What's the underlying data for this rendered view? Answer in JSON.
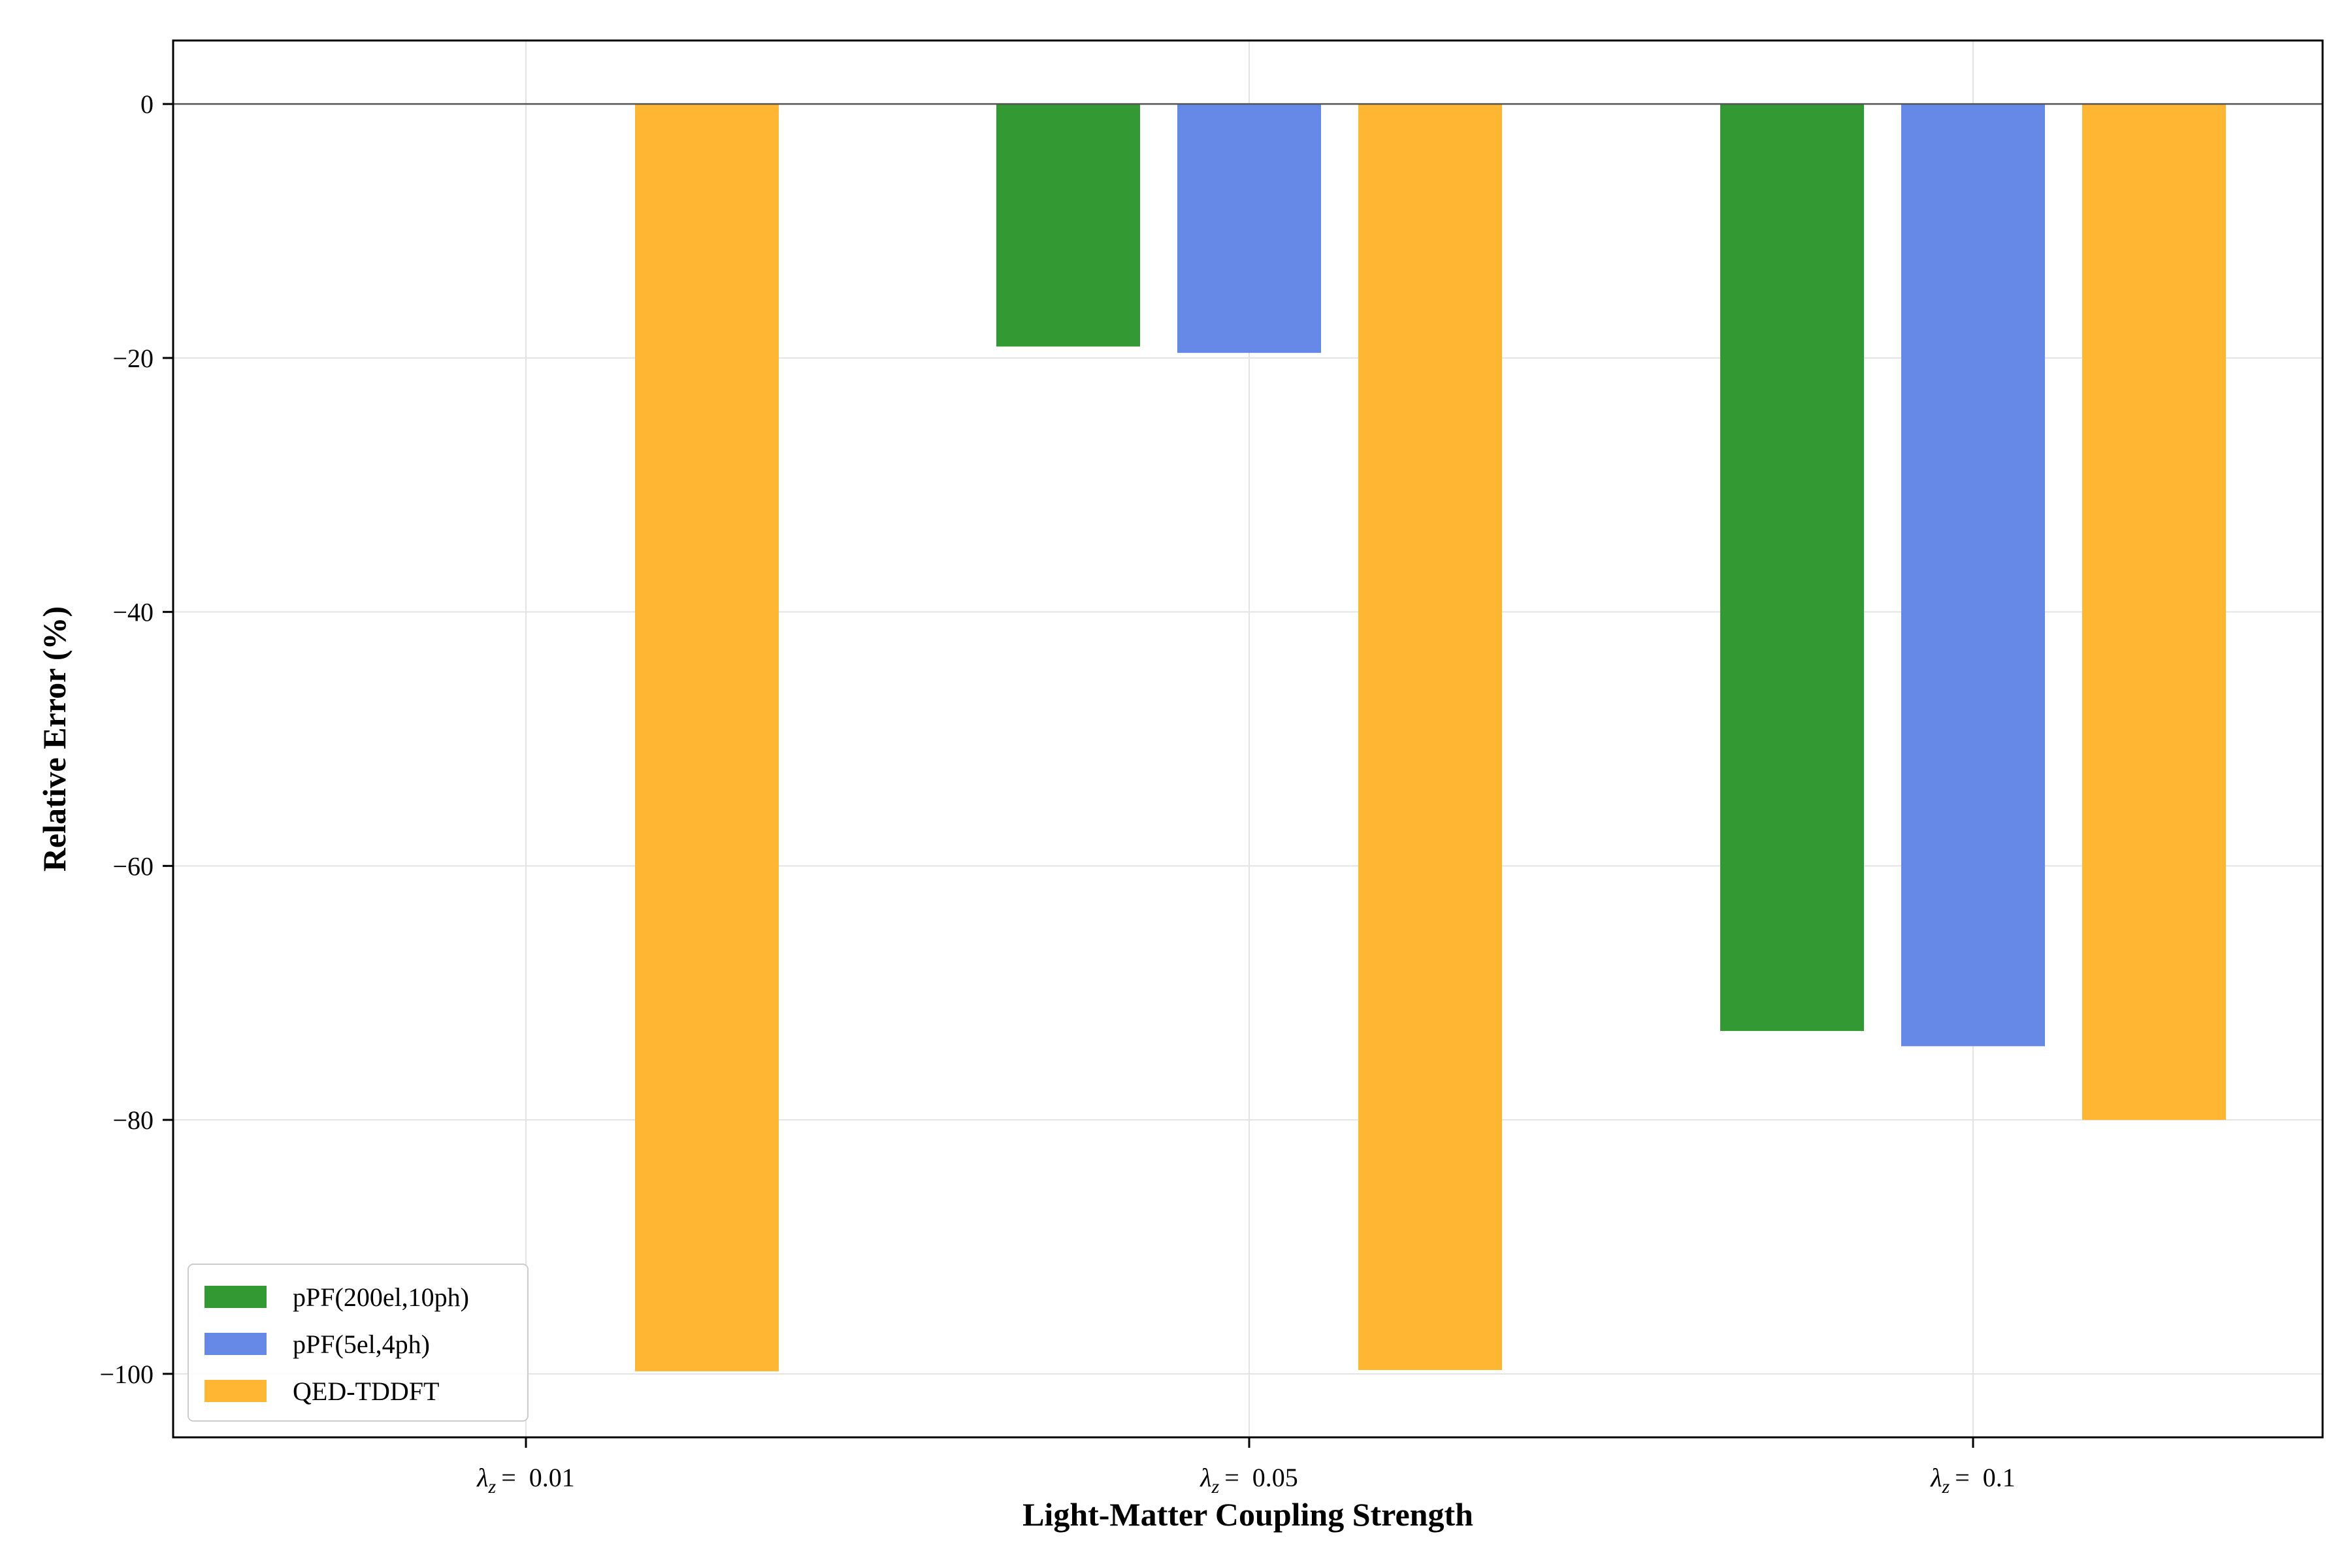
{
  "chart_data": {
    "type": "bar",
    "xlabel": "Light-Matter Coupling Strength",
    "ylabel": "Relative Error (%)",
    "categories": [
      {
        "symbol": "λ",
        "sub": "z",
        "eq": "=",
        "value": "0.01"
      },
      {
        "symbol": "λ",
        "sub": "z",
        "eq": "=",
        "value": "0.05"
      },
      {
        "symbol": "λ",
        "sub": "z",
        "eq": "=",
        "value": "0.1"
      }
    ],
    "series": [
      {
        "name": "pPF(200el,10ph)",
        "color": "#339933",
        "values": [
          null,
          -19.1,
          -73.0
        ]
      },
      {
        "name": "pPF(5el,4ph)",
        "color": "#6688e6",
        "values": [
          null,
          -19.6,
          -74.2
        ]
      },
      {
        "name": "QED-TDDFT",
        "color": "#ffb733",
        "values": [
          -99.8,
          -99.7,
          -80.0
        ]
      }
    ],
    "ylim": [
      -105,
      5
    ],
    "yticks": [
      0,
      -20,
      -40,
      -60,
      -80,
      -100
    ],
    "ytick_labels": [
      "0",
      "−20",
      "−40",
      "−60",
      "−80",
      "−100"
    ],
    "grid": true,
    "zero_line": true,
    "legend_position": "lower-left"
  }
}
